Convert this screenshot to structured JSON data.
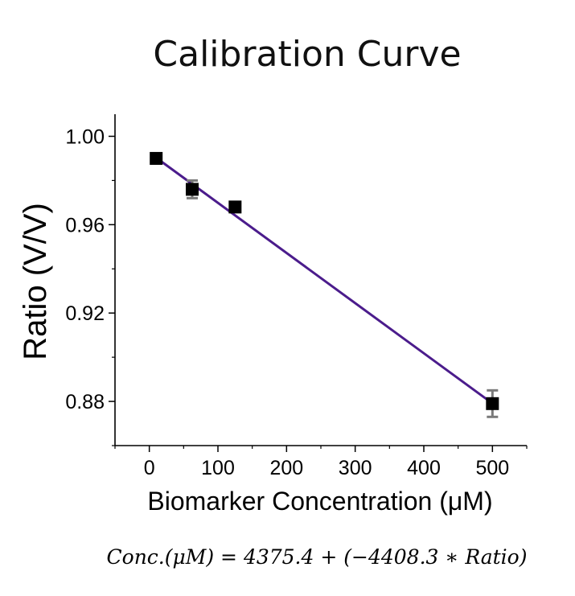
{
  "chart_data": {
    "type": "scatter",
    "title": "Calibration Curve",
    "xlabel": "Biomarker Concentration (μM)",
    "ylabel": "Ratio (V/V)",
    "xlim": [
      -50,
      550
    ],
    "ylim": [
      0.86,
      1.01
    ],
    "x_ticks": [
      0,
      100,
      200,
      300,
      400,
      500
    ],
    "x_tick_labels": [
      "0",
      "100",
      "200",
      "300",
      "400",
      "500"
    ],
    "y_ticks": [
      0.88,
      0.92,
      0.96,
      1.0
    ],
    "y_tick_labels": [
      "0.88",
      "0.92",
      "0.96",
      "1.00"
    ],
    "grid": false,
    "series": [
      {
        "x": [
          10,
          62.5,
          125,
          500
        ],
        "y": [
          0.99,
          0.976,
          0.968,
          0.879
        ],
        "y_error": [
          0.002,
          0.004,
          0.002,
          0.006
        ],
        "marker": "square",
        "color": "#000000",
        "error_color": "#7a7a7a"
      }
    ],
    "fit_line": {
      "x": [
        10,
        500
      ],
      "y": [
        0.9903,
        0.8791
      ],
      "color": "#4b1c8c"
    },
    "equation": "Conc.(μM) = 4375.4 + (−4408.3 ∗ Ratio)"
  }
}
